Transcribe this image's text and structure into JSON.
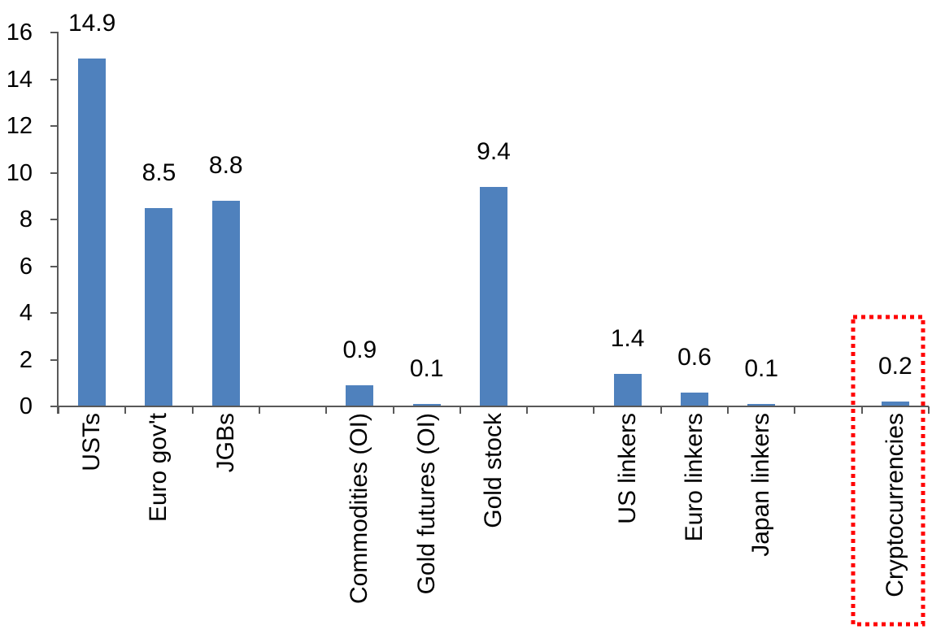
{
  "chart_data": {
    "type": "bar",
    "title": "",
    "xlabel": "",
    "ylabel": "",
    "categories": [
      "USTs",
      "Euro gov't",
      "JGBs",
      "",
      "Commodities (OI)",
      "Gold futures (OI)",
      "Gold stock",
      "",
      "US linkers",
      "Euro linkers",
      "Japan linkers",
      "",
      "Cryptocurrencies"
    ],
    "values": [
      14.9,
      8.5,
      8.8,
      null,
      0.9,
      0.1,
      9.4,
      null,
      1.4,
      0.6,
      0.1,
      null,
      0.2
    ],
    "data_labels": [
      "14.9",
      "8.5",
      "8.8",
      null,
      "0.9",
      "0.1",
      "9.4",
      null,
      "1.4",
      "0.6",
      "0.1",
      null,
      "0.2"
    ],
    "ylim": [
      0,
      16
    ],
    "ytick_step": 2,
    "ytick_labels": [
      "0",
      "2",
      "4",
      "6",
      "8",
      "10",
      "12",
      "14",
      "16"
    ],
    "grid": false,
    "legend": false,
    "highlight": {
      "category": "Cryptocurrencies",
      "shape": "dotted-rectangle",
      "color": "#FF0000"
    },
    "colors": {
      "bar": "#4F81BD",
      "axis": "#595959",
      "text": "#000000",
      "background": "#FFFFFF"
    }
  }
}
